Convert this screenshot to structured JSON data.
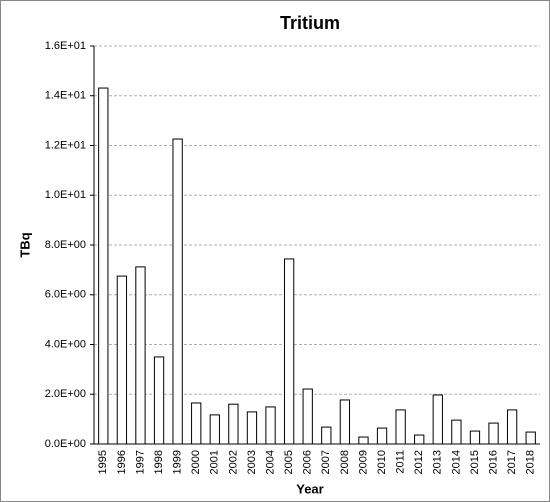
{
  "chart_data": {
    "type": "bar",
    "title": "Tritium",
    "x_label": "Year",
    "y_label": "TBq",
    "categories": [
      "1995",
      "1996",
      "1997",
      "1998",
      "1999",
      "2000",
      "2001",
      "2002",
      "2003",
      "2004",
      "2005",
      "2006",
      "2007",
      "2008",
      "2009",
      "2010",
      "2011",
      "2012",
      "2013",
      "2014",
      "2015",
      "2016",
      "2017",
      "2018"
    ],
    "values": [
      14.31,
      6.75,
      7.12,
      3.5,
      12.26,
      1.65,
      1.17,
      1.6,
      1.29,
      1.49,
      7.44,
      2.21,
      0.68,
      1.77,
      0.28,
      0.64,
      1.37,
      0.36,
      1.97,
      0.96,
      0.52,
      0.84,
      1.37,
      0.48
    ],
    "color": "#ffffff",
    "ylim": [
      0,
      16
    ],
    "yticks": [
      {
        "value": 0,
        "label": "0.0E+00"
      },
      {
        "value": 2,
        "label": "2.0E+00"
      },
      {
        "value": 4,
        "label": "4.0E+00"
      },
      {
        "value": 6,
        "label": "6.0E+00"
      },
      {
        "value": 8,
        "label": "8.0E+00"
      },
      {
        "value": 10,
        "label": "1.0E+01"
      },
      {
        "value": 12,
        "label": "1.2E+01"
      },
      {
        "value": 14,
        "label": "1.4E+01"
      },
      {
        "value": 16,
        "label": "1.6E+01"
      }
    ],
    "grid": true
  }
}
